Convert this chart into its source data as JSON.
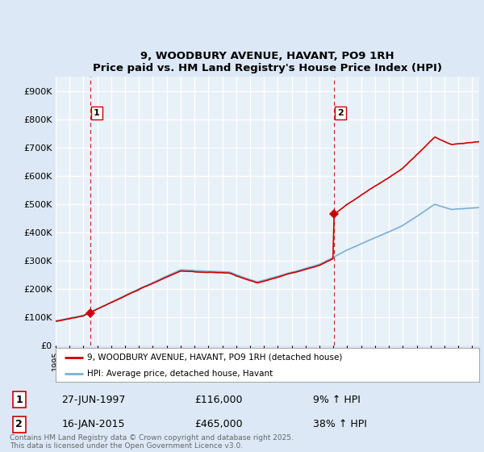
{
  "title": "9, WOODBURY AVENUE, HAVANT, PO9 1RH",
  "subtitle": "Price paid vs. HM Land Registry's House Price Index (HPI)",
  "ylim": [
    0,
    950000
  ],
  "yticks": [
    0,
    100000,
    200000,
    300000,
    400000,
    500000,
    600000,
    700000,
    800000,
    900000
  ],
  "ytick_labels": [
    "£0",
    "£100K",
    "£200K",
    "£300K",
    "£400K",
    "£500K",
    "£600K",
    "£700K",
    "£800K",
    "£900K"
  ],
  "bg_color": "#dce8f5",
  "plot_bg": "#e8f0f8",
  "grid_color": "#ffffff",
  "hpi_color": "#7ab0d4",
  "price_color": "#cc0000",
  "sale1_date": "27-JUN-1997",
  "sale1_price": 116000,
  "sale1_hpi": "9% ↑ HPI",
  "sale2_date": "16-JAN-2015",
  "sale2_price": 465000,
  "sale2_hpi": "38% ↑ HPI",
  "sale1_year": 1997.49,
  "sale2_year": 2015.04,
  "legend_line1": "9, WOODBURY AVENUE, HAVANT, PO9 1RH (detached house)",
  "legend_line2": "HPI: Average price, detached house, Havant",
  "footnote": "Contains HM Land Registry data © Crown copyright and database right 2025.\nThis data is licensed under the Open Government Licence v3.0.",
  "xmin": 1995,
  "xmax": 2025.5
}
